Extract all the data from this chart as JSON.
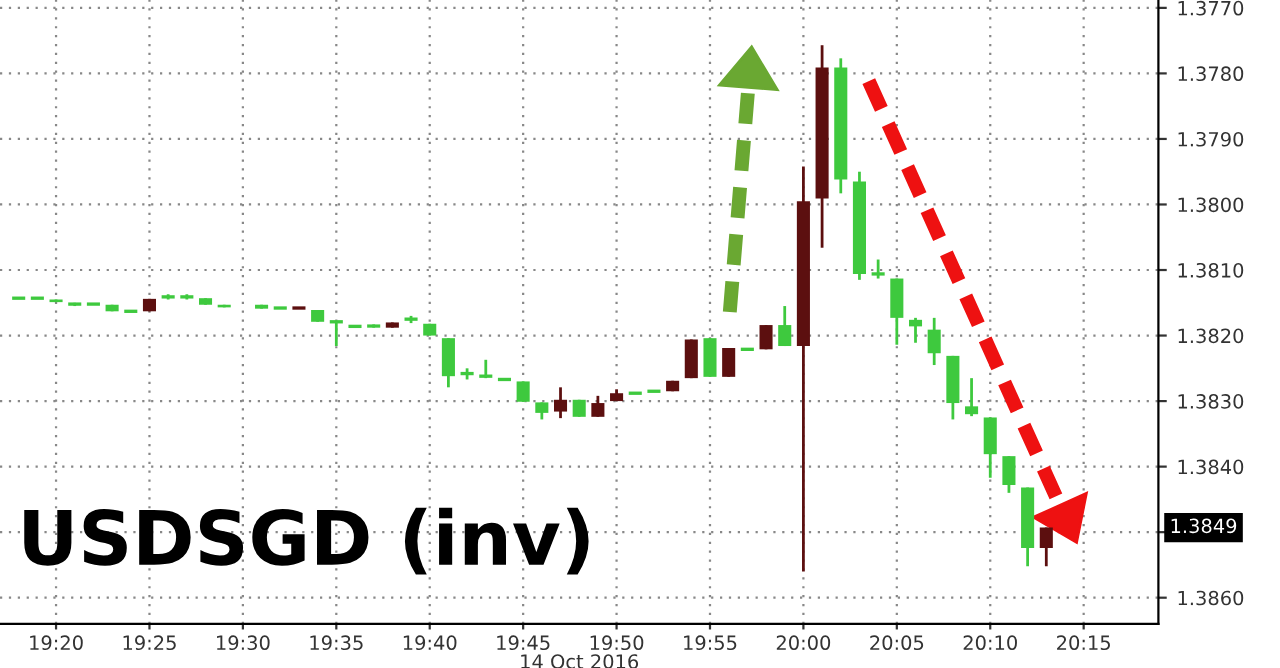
{
  "chart_data": {
    "type": "candlestick",
    "title": "USDSGD (inv)",
    "xlabel": "14 Oct 2016",
    "x": [
      "2016-10-14T19:18",
      "2016-10-14T19:19",
      "2016-10-14T19:20",
      "2016-10-14T19:21",
      "2016-10-14T19:22",
      "2016-10-14T19:23",
      "2016-10-14T19:24",
      "2016-10-14T19:25",
      "2016-10-14T19:26",
      "2016-10-14T19:27",
      "2016-10-14T19:28",
      "2016-10-14T19:29",
      "2016-10-14T19:31",
      "2016-10-14T19:32",
      "2016-10-14T19:33",
      "2016-10-14T19:34",
      "2016-10-14T19:35",
      "2016-10-14T19:36",
      "2016-10-14T19:37",
      "2016-10-14T19:38",
      "2016-10-14T19:39",
      "2016-10-14T19:40",
      "2016-10-14T19:41",
      "2016-10-14T19:42",
      "2016-10-14T19:43",
      "2016-10-14T19:44",
      "2016-10-14T19:45",
      "2016-10-14T19:46",
      "2016-10-14T19:47",
      "2016-10-14T19:48",
      "2016-10-14T19:49",
      "2016-10-14T19:50",
      "2016-10-14T19:51",
      "2016-10-14T19:52",
      "2016-10-14T19:53",
      "2016-10-14T19:54",
      "2016-10-14T19:55",
      "2016-10-14T19:56",
      "2016-10-14T19:57",
      "2016-10-14T19:58",
      "2016-10-14T19:59",
      "2016-10-14T20:00",
      "2016-10-14T20:01",
      "2016-10-14T20:02",
      "2016-10-14T20:03",
      "2016-10-14T20:04",
      "2016-10-14T20:05",
      "2016-10-14T20:06",
      "2016-10-14T20:07",
      "2016-10-14T20:08",
      "2016-10-14T20:09",
      "2016-10-14T20:10",
      "2016-10-14T20:11",
      "2016-10-14T20:12",
      "2016-10-14T20:13"
    ],
    "ohlc": [
      [
        1.38143,
        1.38143,
        1.38143,
        1.38143
      ],
      [
        1.38143,
        1.38143,
        1.38143,
        1.38143
      ],
      [
        1.38145,
        1.38149,
        1.38145,
        1.38149
      ],
      [
        1.38152,
        1.38155,
        1.3815,
        1.38152
      ],
      [
        1.38152,
        1.38152,
        1.38152,
        1.38152
      ],
      [
        1.38153,
        1.38163,
        1.38153,
        1.38163
      ],
      [
        1.38163,
        1.38163,
        1.38163,
        1.38163
      ],
      [
        1.38163,
        1.38163,
        1.38144,
        1.38144
      ],
      [
        1.38141,
        1.38145,
        1.38137,
        1.38141
      ],
      [
        1.38141,
        1.38145,
        1.38137,
        1.38141
      ],
      [
        1.38143,
        1.38153,
        1.38143,
        1.38153
      ],
      [
        1.38153,
        1.38157,
        1.38153,
        1.38157
      ],
      [
        1.38153,
        1.38159,
        1.38153,
        1.38159
      ],
      [
        1.38158,
        1.38158,
        1.38158,
        1.38158
      ],
      [
        1.38158,
        1.38158,
        1.38158,
        1.38158
      ],
      [
        1.38161,
        1.38179,
        1.38161,
        1.38179
      ],
      [
        1.38179,
        1.38216,
        1.38179,
        1.38179
      ],
      [
        1.38186,
        1.38186,
        1.38186,
        1.38186
      ],
      [
        1.38183,
        1.38188,
        1.38183,
        1.38188
      ],
      [
        1.38188,
        1.38188,
        1.3818,
        1.3818
      ],
      [
        1.38175,
        1.38181,
        1.3817,
        1.38175
      ],
      [
        1.38182,
        1.382,
        1.38182,
        1.382
      ],
      [
        1.38204,
        1.38279,
        1.38204,
        1.38262
      ],
      [
        1.38258,
        1.38267,
        1.3825,
        1.38258
      ],
      [
        1.38262,
        1.38265,
        1.38237,
        1.38262
      ],
      [
        1.38267,
        1.38267,
        1.38267,
        1.38267
      ],
      [
        1.3827,
        1.38301,
        1.3827,
        1.38301
      ],
      [
        1.38302,
        1.38328,
        1.38302,
        1.38318
      ],
      [
        1.38316,
        1.38326,
        1.38279,
        1.38298
      ],
      [
        1.38298,
        1.38324,
        1.38298,
        1.38324
      ],
      [
        1.38324,
        1.38324,
        1.38292,
        1.38303
      ],
      [
        1.383,
        1.383,
        1.38282,
        1.38288
      ],
      [
        1.38288,
        1.38288,
        1.38288,
        1.38288
      ],
      [
        1.38285,
        1.38285,
        1.38285,
        1.38285
      ],
      [
        1.38285,
        1.38285,
        1.38269,
        1.38269
      ],
      [
        1.38265,
        1.38265,
        1.38206,
        1.38206
      ],
      [
        1.38204,
        1.38263,
        1.38204,
        1.38263
      ],
      [
        1.38263,
        1.38263,
        1.38219,
        1.38219
      ],
      [
        1.38221,
        1.38221,
        1.38221,
        1.38221
      ],
      [
        1.38221,
        1.38221,
        1.38184,
        1.38184
      ],
      [
        1.38184,
        1.38216,
        1.38155,
        1.38216
      ],
      [
        1.38216,
        1.3856,
        1.37942,
        1.37995
      ],
      [
        1.37991,
        1.38066,
        1.37757,
        1.37791
      ],
      [
        1.37791,
        1.37983,
        1.37777,
        1.37962
      ],
      [
        1.37965,
        1.38115,
        1.3795,
        1.38106
      ],
      [
        1.38106,
        1.38113,
        1.38084,
        1.38106
      ],
      [
        1.38113,
        1.38214,
        1.38113,
        1.38173
      ],
      [
        1.38176,
        1.38211,
        1.38173,
        1.38186
      ],
      [
        1.38191,
        1.38245,
        1.38173,
        1.38227
      ],
      [
        1.38231,
        1.38328,
        1.38231,
        1.38303
      ],
      [
        1.38308,
        1.38323,
        1.38265,
        1.3832
      ],
      [
        1.38325,
        1.38417,
        1.38325,
        1.38381
      ],
      [
        1.38384,
        1.3844,
        1.38384,
        1.38428
      ],
      [
        1.38432,
        1.38552,
        1.38432,
        1.38524
      ],
      [
        1.38524,
        1.38552,
        1.38493,
        1.38493
      ]
    ],
    "colors": [
      "#3ec93e",
      "#3ec93e",
      "#3ec93e",
      "#3ec93e",
      "#3ec93e",
      "#3ec93e",
      "#3ec93e",
      "#5c0f0f",
      "#3ec93e",
      "#3ec93e",
      "#3ec93e",
      "#3ec93e",
      "#3ec93e",
      "#3ec93e",
      "#5c0f0f",
      "#3ec93e",
      "#3ec93e",
      "#3ec93e",
      "#3ec93e",
      "#5c0f0f",
      "#3ec93e",
      "#3ec93e",
      "#3ec93e",
      "#3ec93e",
      "#3ec93e",
      "#3ec93e",
      "#3ec93e",
      "#3ec93e",
      "#5c0f0f",
      "#3ec93e",
      "#5c0f0f",
      "#5c0f0f",
      "#3ec93e",
      "#3ec93e",
      "#5c0f0f",
      "#5c0f0f",
      "#3ec93e",
      "#5c0f0f",
      "#3ec93e",
      "#5c0f0f",
      "#3ec93e",
      "#5c0f0f",
      "#5c0f0f",
      "#3ec93e",
      "#3ec93e",
      "#3ec93e",
      "#3ec93e",
      "#3ec93e",
      "#3ec93e",
      "#3ec93e",
      "#3ec93e",
      "#3ec93e",
      "#3ec93e",
      "#3ec93e",
      "#5c0f0f"
    ],
    "xlim": [
      "2016-10-14T19:17",
      "2016-10-14T20:19"
    ],
    "xticks": [
      {
        "value": "2016-10-14T19:20",
        "label": "19:20"
      },
      {
        "value": "2016-10-14T19:25",
        "label": "19:25"
      },
      {
        "value": "2016-10-14T19:30",
        "label": "19:30"
      },
      {
        "value": "2016-10-14T19:35",
        "label": "19:35"
      },
      {
        "value": "2016-10-14T19:40",
        "label": "19:40"
      },
      {
        "value": "2016-10-14T19:45",
        "label": "19:45"
      },
      {
        "value": "2016-10-14T19:50",
        "label": "19:50"
      },
      {
        "value": "2016-10-14T19:55",
        "label": "19:55"
      },
      {
        "value": "2016-10-14T20:00",
        "label": "20:00"
      },
      {
        "value": "2016-10-14T20:05",
        "label": "20:05"
      },
      {
        "value": "2016-10-14T20:10",
        "label": "20:10"
      },
      {
        "value": "2016-10-14T20:15",
        "label": "20:15"
      }
    ],
    "ylim": [
      1.3864,
      1.37688
    ],
    "yticks": [
      {
        "value": 1.377,
        "label": "1.3770"
      },
      {
        "value": 1.378,
        "label": "1.3780"
      },
      {
        "value": 1.379,
        "label": "1.3790"
      },
      {
        "value": 1.38,
        "label": "1.3800"
      },
      {
        "value": 1.381,
        "label": "1.3810"
      },
      {
        "value": 1.382,
        "label": "1.3820"
      },
      {
        "value": 1.383,
        "label": "1.3830"
      },
      {
        "value": 1.384,
        "label": "1.3840"
      },
      {
        "value": 1.385,
        "label": null
      },
      {
        "value": 1.386,
        "label": "1.3860"
      }
    ],
    "annotations": [
      "1.3849"
    ],
    "grid": true
  }
}
